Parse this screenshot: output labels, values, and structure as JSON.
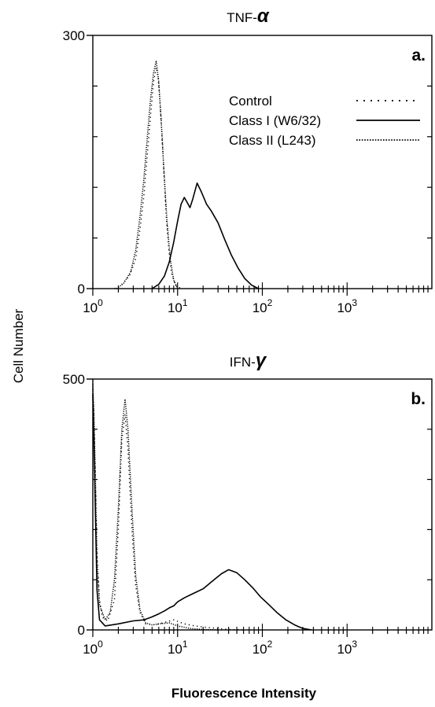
{
  "figure": {
    "y_axis_label": "Cell Number",
    "x_axis_label": "Fluorescence Intensity"
  },
  "chart_data": [
    {
      "type": "line",
      "title_prefix": "TNF-",
      "title_symbol": "α",
      "panel_label": "a.",
      "x_scale": "log",
      "xlim": [
        1,
        10000
      ],
      "ylim": [
        0,
        300
      ],
      "yticks": [
        0,
        300
      ],
      "xticks": [
        {
          "value": 1,
          "base": "10",
          "exp": "0"
        },
        {
          "value": 10,
          "base": "10",
          "exp": "1"
        },
        {
          "value": 100,
          "base": "10",
          "exp": "2"
        },
        {
          "value": 1000,
          "base": "10",
          "exp": "3"
        }
      ],
      "legend_position": "top-right",
      "series": [
        {
          "name": "Control",
          "style": "sparse-dotted",
          "x": [
            1.8,
            2.2,
            2.7,
            3.2,
            3.6,
            4.0,
            4.4,
            4.8,
            5.2,
            5.6,
            5.9,
            6.3,
            6.8,
            7.3,
            7.9,
            8.5,
            9.5,
            11
          ],
          "y": [
            0,
            5,
            15,
            35,
            70,
            110,
            160,
            205,
            245,
            262,
            250,
            210,
            150,
            90,
            45,
            18,
            4,
            0
          ]
        },
        {
          "name": "Class I (W6/32)",
          "style": "solid",
          "x": [
            5,
            6,
            7,
            8,
            9,
            10,
            11,
            12,
            13,
            14,
            15,
            17,
            19,
            22,
            25,
            30,
            36,
            43,
            52,
            62,
            75,
            90
          ],
          "y": [
            0,
            5,
            15,
            32,
            55,
            80,
            100,
            108,
            102,
            96,
            105,
            125,
            115,
            100,
            92,
            78,
            58,
            40,
            24,
            12,
            4,
            0
          ]
        },
        {
          "name": "Class II (L243)",
          "style": "dense-dotted",
          "x": [
            1.9,
            2.3,
            2.8,
            3.2,
            3.6,
            4.0,
            4.4,
            4.8,
            5.2,
            5.6,
            6.0,
            6.4,
            6.9,
            7.5,
            8.2,
            9.0,
            10
          ],
          "y": [
            0,
            6,
            20,
            45,
            85,
            130,
            180,
            225,
            255,
            270,
            245,
            200,
            140,
            80,
            35,
            10,
            0
          ]
        }
      ]
    },
    {
      "type": "line",
      "title_prefix": "IFN-",
      "title_symbol": "γ",
      "panel_label": "b.",
      "x_scale": "log",
      "xlim": [
        1,
        10000
      ],
      "ylim": [
        0,
        500
      ],
      "yticks": [
        0,
        500
      ],
      "xticks": [
        {
          "value": 1,
          "base": "10",
          "exp": "0"
        },
        {
          "value": 10,
          "base": "10",
          "exp": "1"
        },
        {
          "value": 100,
          "base": "10",
          "exp": "2"
        },
        {
          "value": 1000,
          "base": "10",
          "exp": "3"
        }
      ],
      "series": [
        {
          "name": "Control",
          "style": "sparse-dotted",
          "x": [
            1.0,
            1.03,
            1.07,
            1.12,
            1.2,
            1.3,
            1.5,
            1.8,
            2.0,
            2.2,
            2.4,
            2.6,
            2.9,
            3.2,
            3.6,
            4.2,
            5.5,
            7.0,
            9.0,
            12,
            16,
            22,
            30,
            40,
            60
          ],
          "y": [
            480,
            420,
            300,
            150,
            60,
            25,
            18,
            60,
            200,
            380,
            430,
            360,
            200,
            90,
            35,
            12,
            10,
            15,
            20,
            12,
            8,
            5,
            3,
            1,
            0
          ]
        },
        {
          "name": "Class I (W6/32)",
          "style": "solid",
          "x": [
            1.0,
            1.03,
            1.07,
            1.12,
            1.2,
            1.4,
            2,
            3,
            4,
            5,
            6,
            7,
            8,
            9,
            10,
            12,
            15,
            20,
            26,
            33,
            40,
            50,
            62,
            77,
            95,
            120,
            150,
            190,
            240,
            300,
            380
          ],
          "y": [
            470,
            380,
            240,
            80,
            20,
            8,
            12,
            18,
            20,
            26,
            32,
            38,
            44,
            48,
            56,
            64,
            72,
            82,
            98,
            112,
            120,
            114,
            100,
            84,
            66,
            50,
            34,
            20,
            10,
            3,
            0
          ]
        },
        {
          "name": "Class II (L243)",
          "style": "dense-dotted",
          "x": [
            1.0,
            1.03,
            1.07,
            1.12,
            1.2,
            1.4,
            1.6,
            1.8,
            2.0,
            2.2,
            2.4,
            2.6,
            2.9,
            3.2,
            3.6,
            4.2,
            5,
            6,
            8,
            10,
            14,
            20,
            30
          ],
          "y": [
            490,
            430,
            310,
            140,
            50,
            20,
            35,
            100,
            240,
            400,
            460,
            400,
            240,
            110,
            40,
            14,
            10,
            12,
            14,
            8,
            3,
            1,
            0
          ]
        }
      ]
    }
  ]
}
